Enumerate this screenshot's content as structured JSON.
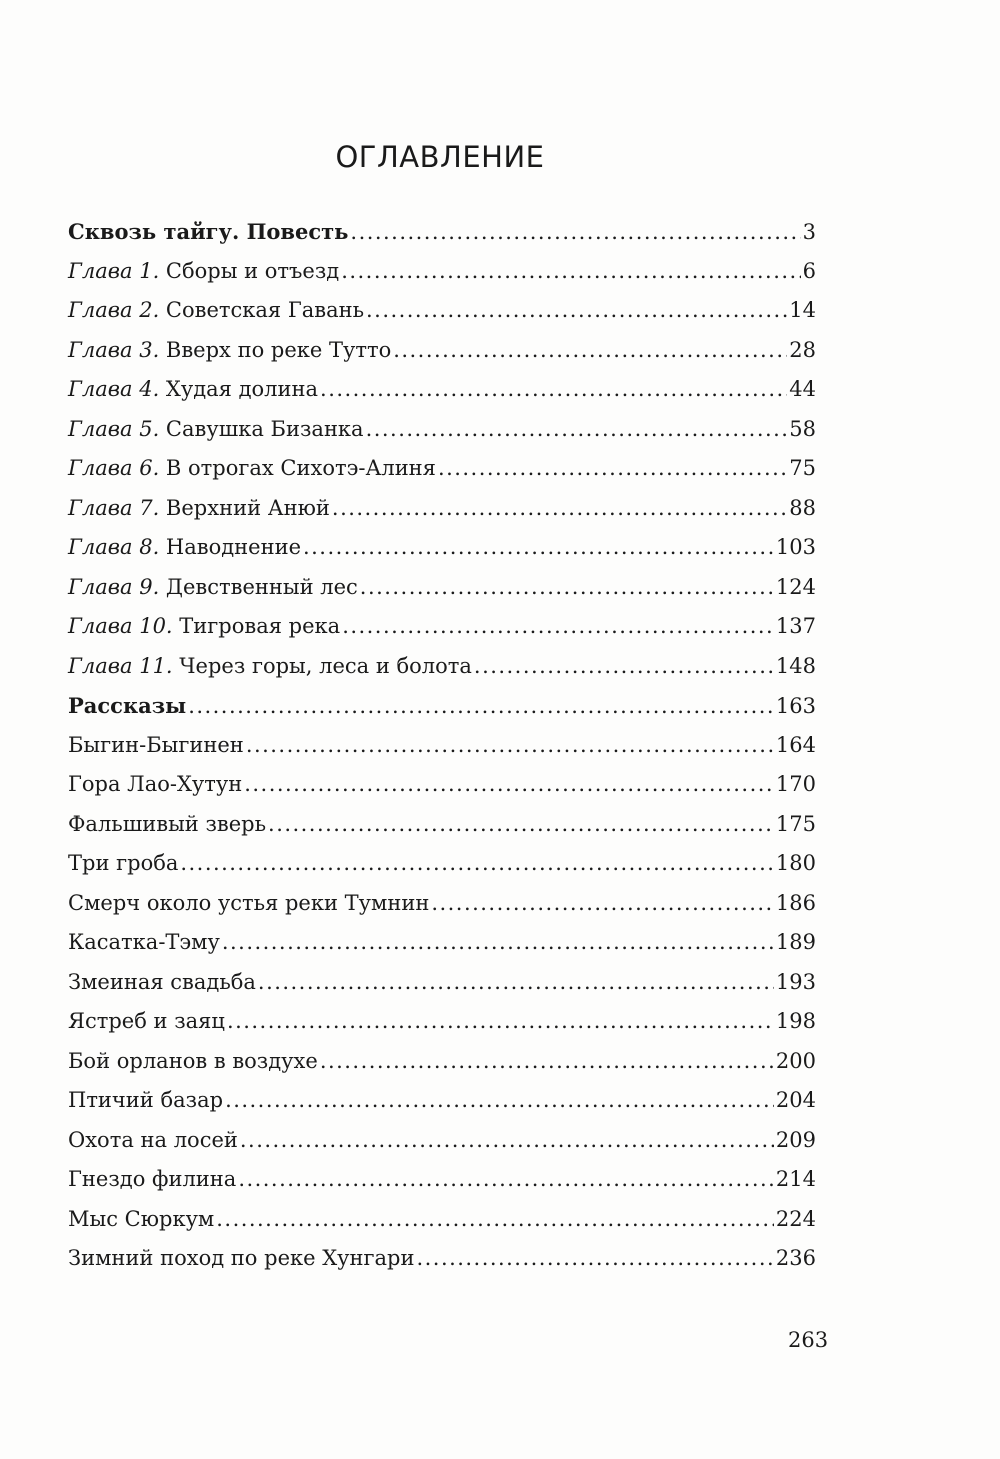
{
  "title": "ОГЛАВЛЕНИЕ",
  "entries": [
    {
      "prefix": "",
      "text": "Сквозь тайгу. Повесть",
      "page": "3",
      "bold": true
    },
    {
      "prefix": "Глава 1.",
      "text": " Сборы и отъезд",
      "page": "6"
    },
    {
      "prefix": "Глава 2.",
      "text": " Советская Гавань",
      "page": "14"
    },
    {
      "prefix": "Глава 3.",
      "text": " Вверх по реке Тутто",
      "page": "28"
    },
    {
      "prefix": "Глава 4.",
      "text": " Худая долина",
      "page": "44"
    },
    {
      "prefix": "Глава 5.",
      "text": " Савушка Бизанка",
      "page": "58"
    },
    {
      "prefix": "Глава 6.",
      "text": " В отрогах Сихотэ-Алиня",
      "page": "75"
    },
    {
      "prefix": "Глава 7.",
      "text": " Верхний Анюй",
      "page": "88"
    },
    {
      "prefix": "Глава 8.",
      "text": " Наводнение",
      "page": "103"
    },
    {
      "prefix": "Глава 9.",
      "text": " Девственный лес",
      "page": "124"
    },
    {
      "prefix": "Глава 10.",
      "text": " Тигровая река",
      "page": "137"
    },
    {
      "prefix": "Глава 11.",
      "text": " Через горы, леса и болота",
      "page": "148"
    },
    {
      "prefix": "",
      "text": "Рассказы",
      "page": "163",
      "bold": true
    },
    {
      "prefix": "",
      "text": "Быгин-Быгинен",
      "page": "164"
    },
    {
      "prefix": "",
      "text": "Гора Лао-Хутун",
      "page": "170"
    },
    {
      "prefix": "",
      "text": "Фальшивый зверь",
      "page": "175"
    },
    {
      "prefix": "",
      "text": "Три гроба",
      "page": "180"
    },
    {
      "prefix": "",
      "text": "Смерч около устья реки Тумнин",
      "page": "186"
    },
    {
      "prefix": "",
      "text": "Касатка-Тэму",
      "page": "189"
    },
    {
      "prefix": "",
      "text": "Змеиная свадьба",
      "page": "193"
    },
    {
      "prefix": "",
      "text": "Ястреб и заяц",
      "page": "198"
    },
    {
      "prefix": "",
      "text": "Бой орланов в воздухе",
      "page": "200"
    },
    {
      "prefix": "",
      "text": "Птичий базар",
      "page": "204"
    },
    {
      "prefix": "",
      "text": "Охота на лосей",
      "page": "209"
    },
    {
      "prefix": "",
      "text": "Гнездо филина",
      "page": "214"
    },
    {
      "prefix": "",
      "text": "Мыс Сюркум",
      "page": "224"
    },
    {
      "prefix": "",
      "text": "Зимний поход по реке Хунгари",
      "page": "236"
    }
  ],
  "folio": "263"
}
